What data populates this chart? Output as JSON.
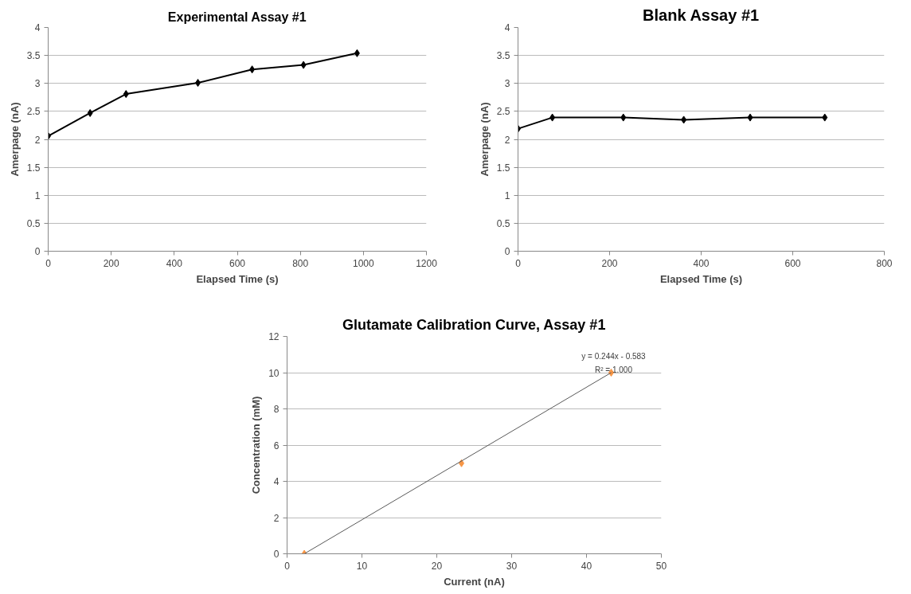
{
  "chart_data": [
    {
      "type": "line",
      "title": "Experimental Assay #1",
      "xlabel": "Elapsed Time (s)",
      "ylabel": "Amerpage (nA)",
      "xlim": [
        0,
        1200
      ],
      "xticks": [
        0,
        200,
        400,
        600,
        800,
        1000,
        1200
      ],
      "ylim": [
        0,
        4
      ],
      "yticks": [
        0,
        0.5,
        1,
        1.5,
        2,
        2.5,
        3,
        3.5,
        4
      ],
      "grid": "y",
      "marker": "diamond",
      "line_style": "solid",
      "series": [
        {
          "color": "#000000",
          "x": [
            0,
            133,
            247,
            475,
            647,
            810,
            980
          ],
          "values": [
            2.06,
            2.47,
            2.81,
            3.01,
            3.25,
            3.33,
            3.54
          ]
        }
      ]
    },
    {
      "type": "line",
      "title": "Blank Assay #1",
      "xlabel": "Elapsed Time (s)",
      "ylabel": "Amerpage (nA)",
      "xlim": [
        0,
        800
      ],
      "xticks": [
        0,
        200,
        400,
        600,
        800
      ],
      "ylim": [
        0,
        4
      ],
      "yticks": [
        0,
        0.5,
        1,
        1.5,
        2,
        2.5,
        3,
        3.5,
        4
      ],
      "grid": "y",
      "marker": "diamond",
      "line_style": "solid",
      "series": [
        {
          "color": "#000000",
          "x": [
            0,
            75,
            230,
            362,
            507,
            670
          ],
          "values": [
            2.19,
            2.39,
            2.39,
            2.35,
            2.39,
            2.39
          ]
        }
      ]
    },
    {
      "type": "scatter",
      "title": "Glutamate Calibration Curve, Assay #1",
      "xlabel": "Current (nA)",
      "ylabel": "Concentration (mM)",
      "xlim": [
        0,
        50
      ],
      "xticks": [
        0,
        10,
        20,
        30,
        40,
        50
      ],
      "ylim": [
        0,
        12
      ],
      "yticks": [
        0,
        2,
        4,
        6,
        8,
        10,
        12
      ],
      "grid": "y",
      "marker": "diamond",
      "series": [
        {
          "color": "#f79646",
          "x": [
            2.3,
            23.3,
            43.3
          ],
          "values": [
            0,
            5,
            10
          ]
        },
        {
          "type": "line",
          "color": "#595959",
          "x": [
            2.3,
            43.3
          ],
          "values": [
            0,
            10
          ],
          "marker": "none",
          "line_style": "solid"
        }
      ],
      "annotations": [
        "y = 0.244x - 0.583",
        "R² = 1.000"
      ]
    }
  ]
}
